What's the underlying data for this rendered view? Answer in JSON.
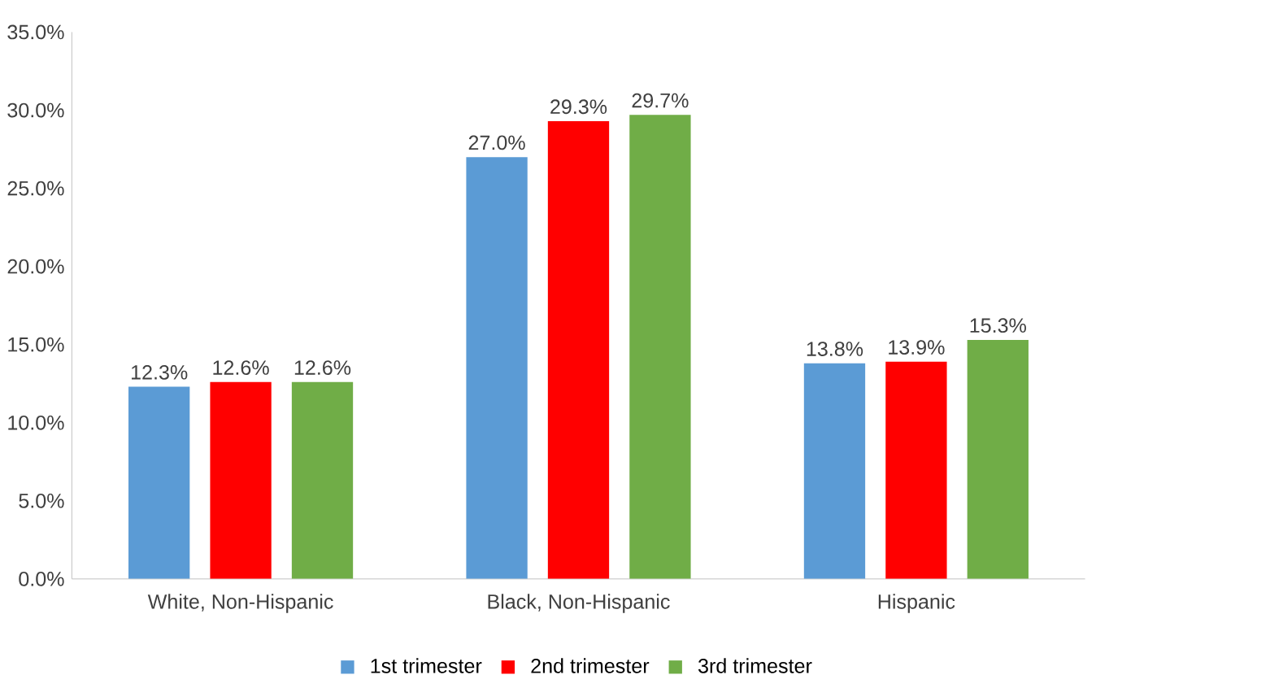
{
  "chart_data": {
    "type": "bar",
    "categories": [
      "White, Non-Hispanic",
      "Black, Non-Hispanic",
      "Hispanic"
    ],
    "series": [
      {
        "name": "1st trimester",
        "color": "#5b9bd5",
        "values": [
          12.3,
          27.0,
          13.8
        ],
        "value_labels": [
          "12.3%",
          "27.0%",
          "13.8%"
        ]
      },
      {
        "name": "2nd trimester",
        "color": "#ff0000",
        "values": [
          12.6,
          29.3,
          13.9
        ],
        "value_labels": [
          "12.6%",
          "29.3%",
          "13.9%"
        ]
      },
      {
        "name": "3rd trimester",
        "color": "#70ad47",
        "values": [
          12.6,
          29.7,
          15.3
        ],
        "value_labels": [
          "12.6%",
          "29.7%",
          "15.3%"
        ]
      }
    ],
    "ylim": [
      0,
      35
    ],
    "yticks": [
      {
        "value": 0,
        "label": "0.0%"
      },
      {
        "value": 5,
        "label": "5.0%"
      },
      {
        "value": 10,
        "label": "10.0%"
      },
      {
        "value": 15,
        "label": "15.0%"
      },
      {
        "value": 20,
        "label": "20.0%"
      },
      {
        "value": 25,
        "label": "25.0%"
      },
      {
        "value": 30,
        "label": "30.0%"
      },
      {
        "value": 35,
        "label": "35.0%"
      }
    ],
    "grid": false,
    "legend": "bottom"
  }
}
